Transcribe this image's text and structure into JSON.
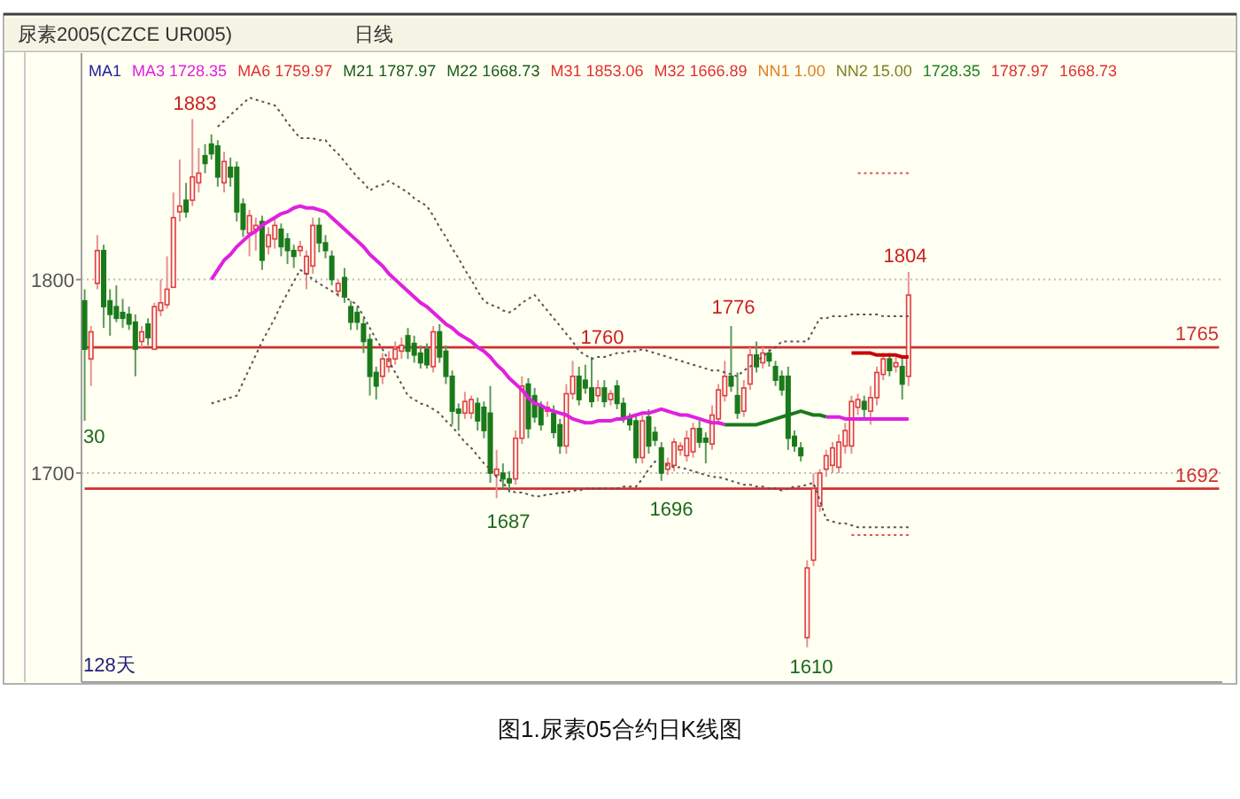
{
  "chart_data": {
    "type": "candlestick",
    "title": "图1.尿素05合约日K线图",
    "subtitle": "尿素2005(CZCE UR005)",
    "categories": [
      null,
      null,
      null,
      null,
      null,
      null,
      null,
      null,
      null,
      null,
      null,
      null,
      null,
      null,
      null,
      null,
      null,
      null,
      null,
      null,
      null,
      null,
      null,
      null,
      null,
      null,
      null,
      null,
      null,
      null,
      null,
      null,
      null,
      null,
      null,
      null,
      null,
      null,
      null,
      null,
      null,
      null,
      null,
      null,
      null,
      null,
      null,
      null,
      null,
      null,
      null,
      null,
      null,
      null,
      null,
      null,
      null,
      null,
      null,
      null,
      null,
      null,
      null,
      null,
      null,
      null,
      null,
      null,
      null,
      null,
      null,
      null,
      null,
      null,
      null,
      null,
      null,
      null,
      null,
      null,
      null,
      null,
      null,
      null,
      null,
      null,
      null,
      null,
      null,
      null,
      null,
      null,
      null,
      null,
      null,
      null,
      null,
      null,
      null,
      null,
      null,
      null,
      null,
      null,
      null,
      null,
      null,
      null,
      null,
      null,
      null,
      null,
      null,
      null,
      null,
      null,
      null,
      null,
      null,
      null,
      null,
      null,
      null,
      null,
      null,
      null,
      null,
      null,
      null,
      null,
      null,
      null,
      null,
      null,
      null,
      null,
      null,
      null,
      null,
      null,
      null,
      null,
      null,
      null,
      null,
      null,
      null,
      null,
      null,
      null,
      null,
      null,
      null,
      null,
      null,
      null,
      null,
      null,
      null,
      null,
      null,
      null,
      null,
      null,
      null,
      null,
      null,
      null,
      null,
      null,
      null,
      null,
      null,
      null,
      null,
      null,
      null,
      null,
      null,
      null
    ],
    "ohlc": [
      [
        1789,
        1795,
        1727,
        1764
      ],
      [
        1759,
        1776,
        1745,
        1773
      ],
      [
        1798,
        1823,
        1795,
        1815
      ],
      [
        1815,
        1818,
        1775,
        1786
      ],
      [
        1789,
        1795,
        1771,
        1782
      ],
      [
        1786,
        1797,
        1778,
        1780
      ],
      [
        1783,
        1790,
        1775,
        1780
      ],
      [
        1782,
        1786,
        1774,
        1777
      ],
      [
        1778,
        1782,
        1750,
        1764
      ],
      [
        1768,
        1776,
        1765,
        1773
      ],
      [
        1777,
        1780,
        1766,
        1770
      ],
      [
        1764,
        1788,
        1764,
        1786
      ],
      [
        1784,
        1800,
        1781,
        1788
      ],
      [
        1787,
        1812,
        1785,
        1795
      ],
      [
        1796,
        1845,
        1796,
        1832
      ],
      [
        1835,
        1862,
        1830,
        1838
      ],
      [
        1841,
        1850,
        1832,
        1835
      ],
      [
        1841,
        1883,
        1838,
        1853
      ],
      [
        1850,
        1868,
        1845,
        1855
      ],
      [
        1864,
        1870,
        1855,
        1860
      ],
      [
        1870,
        1875,
        1862,
        1865
      ],
      [
        1869,
        1872,
        1848,
        1853
      ],
      [
        1850,
        1866,
        1845,
        1861
      ],
      [
        1858,
        1863,
        1848,
        1853
      ],
      [
        1858,
        1861,
        1830,
        1835
      ],
      [
        1839,
        1842,
        1822,
        1826
      ],
      [
        1824,
        1836,
        1812,
        1833
      ],
      [
        1826,
        1832,
        1815,
        1828
      ],
      [
        1830,
        1833,
        1805,
        1810
      ],
      [
        1817,
        1827,
        1813,
        1823
      ],
      [
        1821,
        1832,
        1816,
        1828
      ],
      [
        1826,
        1829,
        1812,
        1817
      ],
      [
        1821,
        1824,
        1808,
        1815
      ],
      [
        1815,
        1818,
        1806,
        1812
      ],
      [
        1815,
        1820,
        1812,
        1817
      ],
      [
        1803,
        1815,
        1795,
        1812
      ],
      [
        1807,
        1832,
        1803,
        1828
      ],
      [
        1828,
        1832,
        1814,
        1819
      ],
      [
        1819,
        1823,
        1811,
        1815
      ],
      [
        1812,
        1815,
        1797,
        1800
      ],
      [
        1794,
        1800,
        1791,
        1798
      ],
      [
        1801,
        1806,
        1788,
        1791
      ],
      [
        1786,
        1789,
        1774,
        1778
      ],
      [
        1783,
        1786,
        1774,
        1778
      ],
      [
        1777,
        1780,
        1762,
        1768
      ],
      [
        1769,
        1772,
        1740,
        1750
      ],
      [
        1752,
        1755,
        1738,
        1745
      ],
      [
        1750,
        1762,
        1746,
        1759
      ],
      [
        1755,
        1763,
        1752,
        1759
      ],
      [
        1759,
        1768,
        1756,
        1764
      ],
      [
        1763,
        1770,
        1759,
        1766
      ],
      [
        1771,
        1775,
        1759,
        1763
      ],
      [
        1767,
        1771,
        1757,
        1761
      ],
      [
        1762,
        1766,
        1754,
        1757
      ],
      [
        1764,
        1767,
        1754,
        1756
      ],
      [
        1755,
        1776,
        1752,
        1773
      ],
      [
        1773,
        1777,
        1757,
        1760
      ],
      [
        1763,
        1766,
        1746,
        1750
      ],
      [
        1750,
        1753,
        1725,
        1732
      ],
      [
        1733,
        1736,
        1722,
        1731
      ],
      [
        1731,
        1742,
        1728,
        1737
      ],
      [
        1731,
        1740,
        1728,
        1738
      ],
      [
        1736,
        1739,
        1722,
        1727
      ],
      [
        1734,
        1737,
        1718,
        1722
      ],
      [
        1731,
        1745,
        1695,
        1700
      ],
      [
        1699,
        1712,
        1687,
        1702
      ],
      [
        1700,
        1705,
        1692,
        1697
      ],
      [
        1697,
        1701,
        1690,
        1695
      ],
      [
        1697,
        1722,
        1694,
        1718
      ],
      [
        1718,
        1750,
        1715,
        1745
      ],
      [
        1746,
        1749,
        1718,
        1723
      ],
      [
        1740,
        1744,
        1726,
        1729
      ],
      [
        1734,
        1737,
        1722,
        1725
      ],
      [
        1732,
        1737,
        1729,
        1734
      ],
      [
        1731,
        1735,
        1718,
        1721
      ],
      [
        1725,
        1728,
        1710,
        1714
      ],
      [
        1714,
        1746,
        1710,
        1741
      ],
      [
        1741,
        1758,
        1738,
        1750
      ],
      [
        1750,
        1755,
        1735,
        1738
      ],
      [
        1748,
        1756,
        1741,
        1744
      ],
      [
        1744,
        1760,
        1734,
        1737
      ],
      [
        1740,
        1748,
        1737,
        1744
      ],
      [
        1744,
        1748,
        1734,
        1737
      ],
      [
        1738,
        1743,
        1735,
        1741
      ],
      [
        1745,
        1748,
        1733,
        1736
      ],
      [
        1736,
        1739,
        1726,
        1729
      ],
      [
        1728,
        1731,
        1722,
        1725
      ],
      [
        1727,
        1730,
        1705,
        1708
      ],
      [
        1708,
        1730,
        1705,
        1727
      ],
      [
        1729,
        1733,
        1710,
        1714
      ],
      [
        1721,
        1724,
        1714,
        1717
      ],
      [
        1713,
        1716,
        1696,
        1700
      ],
      [
        1702,
        1708,
        1699,
        1705
      ],
      [
        1704,
        1718,
        1701,
        1716
      ],
      [
        1712,
        1716,
        1709,
        1714
      ],
      [
        1709,
        1722,
        1706,
        1718
      ],
      [
        1711,
        1726,
        1708,
        1723
      ],
      [
        1723,
        1727,
        1713,
        1716
      ],
      [
        1718,
        1721,
        1705,
        1716
      ],
      [
        1715,
        1735,
        1712,
        1730
      ],
      [
        1728,
        1746,
        1725,
        1743
      ],
      [
        1740,
        1758,
        1737,
        1750
      ],
      [
        1750,
        1776,
        1742,
        1745
      ],
      [
        1740,
        1752,
        1728,
        1731
      ],
      [
        1732,
        1748,
        1729,
        1744
      ],
      [
        1746,
        1765,
        1743,
        1761
      ],
      [
        1761,
        1768,
        1752,
        1755
      ],
      [
        1757,
        1765,
        1754,
        1762
      ],
      [
        1762,
        1764,
        1755,
        1758
      ],
      [
        1755,
        1758,
        1745,
        1748
      ],
      [
        1750,
        1753,
        1740,
        1743
      ],
      [
        1750,
        1755,
        1712,
        1718
      ],
      [
        1719,
        1722,
        1711,
        1714
      ],
      [
        1713,
        1716,
        1706,
        1709
      ],
      [
        1615,
        1655,
        1610,
        1651
      ],
      [
        1655,
        1700,
        1652,
        1692
      ],
      [
        1683,
        1702,
        1680,
        1700
      ],
      [
        1702,
        1712,
        1698,
        1709
      ],
      [
        1704,
        1716,
        1700,
        1713
      ],
      [
        1703,
        1720,
        1700,
        1716
      ],
      [
        1714,
        1726,
        1710,
        1722
      ],
      [
        1714,
        1740,
        1710,
        1737
      ],
      [
        1734,
        1741,
        1730,
        1738
      ],
      [
        1737,
        1740,
        1728,
        1733
      ],
      [
        1732,
        1745,
        1725,
        1739
      ],
      [
        1739,
        1755,
        1735,
        1752
      ],
      [
        1751,
        1762,
        1748,
        1759
      ],
      [
        1759,
        1762,
        1750,
        1753
      ],
      [
        1755,
        1760,
        1752,
        1757
      ],
      [
        1755,
        1760,
        1738,
        1746
      ],
      [
        1750,
        1804,
        1745,
        1792
      ],
      null,
      null,
      null,
      null,
      null,
      null,
      null,
      null,
      null,
      null,
      null,
      null,
      null,
      null,
      null,
      null,
      null,
      null,
      null,
      null,
      null,
      null,
      null,
      null,
      null,
      null,
      null,
      null,
      null,
      null,
      null,
      null,
      null,
      null,
      null,
      null,
      null,
      null,
      null,
      null,
      null,
      null,
      null,
      null,
      null,
      null,
      null,
      null,
      null
    ],
    "series": [
      {
        "type": "line",
        "name": "1765",
        "color": "#d03030",
        "values": [
          1765,
          1765,
          1765,
          1765,
          1765,
          1765,
          1765,
          1765,
          1765,
          1765,
          1765,
          1765,
          1765,
          1765,
          1765,
          1765,
          1765,
          1765,
          1765,
          1765,
          1765,
          1765,
          1765,
          1765,
          1765,
          1765,
          1765,
          1765,
          1765,
          1765,
          1765,
          1765,
          1765,
          1765,
          1765,
          1765,
          1765,
          1765,
          1765,
          1765,
          1765,
          1765,
          1765,
          1765,
          1765,
          1765,
          1765,
          1765,
          1765,
          1765,
          1765,
          1765,
          1765,
          1765,
          1765,
          1765,
          1765,
          1765,
          1765,
          1765,
          1765,
          1765,
          1765,
          1765,
          1765,
          1765,
          1765,
          1765,
          1765,
          1765,
          1765,
          1765,
          1765,
          1765,
          1765,
          1765,
          1765,
          1765,
          1765,
          1765,
          1765,
          1765,
          1765,
          1765,
          1765,
          1765,
          1765,
          1765,
          1765,
          1765,
          1765,
          1765,
          1765,
          1765,
          1765,
          1765,
          1765,
          1765,
          1765,
          1765,
          1765,
          1765,
          1765,
          1765,
          1765,
          1765,
          1765,
          1765,
          1765,
          1765,
          1765,
          1765,
          1765,
          1765,
          1765,
          1765,
          1765,
          1765,
          1765,
          1765,
          1765,
          1765,
          1765,
          1765,
          1765,
          1765,
          1765,
          1765,
          1765,
          1765,
          1765,
          1765,
          1765,
          1765,
          1765,
          1765,
          1765,
          1765,
          1765,
          1765,
          1765,
          1765,
          1765,
          1765,
          1765,
          1765,
          1765,
          1765,
          1765,
          1765,
          1765,
          1765,
          1765,
          1765,
          1765,
          1765,
          1765,
          1765,
          1765,
          1765,
          1765,
          1765,
          1765,
          1765,
          1765,
          1765,
          1765,
          1765,
          1765,
          1765,
          1765,
          1765,
          1765,
          1765,
          1765,
          1765,
          1765,
          1765,
          1765,
          1765
        ]
      },
      {
        "type": "line",
        "name": "1692",
        "color": "#d03030",
        "values": [
          1692,
          1692,
          1692,
          1692,
          1692,
          1692,
          1692,
          1692,
          1692,
          1692,
          1692,
          1692,
          1692,
          1692,
          1692,
          1692,
          1692,
          1692,
          1692,
          1692,
          1692,
          1692,
          1692,
          1692,
          1692,
          1692,
          1692,
          1692,
          1692,
          1692,
          1692,
          1692,
          1692,
          1692,
          1692,
          1692,
          1692,
          1692,
          1692,
          1692,
          1692,
          1692,
          1692,
          1692,
          1692,
          1692,
          1692,
          1692,
          1692,
          1692,
          1692,
          1692,
          1692,
          1692,
          1692,
          1692,
          1692,
          1692,
          1692,
          1692,
          1692,
          1692,
          1692,
          1692,
          1692,
          1692,
          1692,
          1692,
          1692,
          1692,
          1692,
          1692,
          1692,
          1692,
          1692,
          1692,
          1692,
          1692,
          1692,
          1692,
          1692,
          1692,
          1692,
          1692,
          1692,
          1692,
          1692,
          1692,
          1692,
          1692,
          1692,
          1692,
          1692,
          1692,
          1692,
          1692,
          1692,
          1692,
          1692,
          1692,
          1692,
          1692,
          1692,
          1692,
          1692,
          1692,
          1692,
          1692,
          1692,
          1692,
          1692,
          1692,
          1692,
          1692,
          1692,
          1692,
          1692,
          1692,
          1692,
          1692,
          1692,
          1692,
          1692,
          1692,
          1692,
          1692,
          1692,
          1692,
          1692,
          1692,
          1692,
          1692,
          1692,
          1692,
          1692,
          1692,
          1692,
          1692,
          1692,
          1692,
          1692,
          1692,
          1692,
          1692,
          1692,
          1692,
          1692,
          1692,
          1692,
          1692,
          1692,
          1692,
          1692,
          1692,
          1692,
          1692,
          1692,
          1692,
          1692,
          1692,
          1692,
          1692,
          1692,
          1692,
          1692,
          1692,
          1692,
          1692,
          1692,
          1692,
          1692,
          1692,
          1692,
          1692,
          1692,
          1692,
          1692,
          1692,
          1692,
          1692
        ]
      },
      {
        "type": "line",
        "color": "#e020e0",
        "values": [
          null,
          null,
          null,
          null,
          null,
          null,
          null,
          null,
          null,
          null,
          null,
          null,
          null,
          null,
          null,
          null,
          null,
          null,
          null,
          null,
          1800,
          1805,
          1810,
          1813,
          1817,
          1820,
          1823,
          1825,
          1828,
          1830,
          1832,
          1834,
          1835,
          1837,
          1838,
          1837,
          1837,
          1836,
          1835,
          1832,
          1829,
          1826,
          1823,
          1820,
          1817,
          1813,
          1810,
          1807,
          1803,
          1800,
          1797,
          1794,
          1791,
          1788,
          1786,
          1783,
          1780,
          1777,
          1775,
          1772,
          1770,
          1768,
          1765,
          1763,
          1760,
          1756,
          1753,
          1749,
          1746,
          1743,
          1739,
          1736,
          1735,
          1733,
          1732,
          1731,
          1730,
          1728,
          1727,
          1726,
          1726,
          1727,
          1727,
          1727,
          1728,
          1728,
          1729,
          1730,
          1731,
          1731,
          1732,
          1733,
          1732,
          1731,
          1730,
          1730,
          1729,
          1728,
          1727,
          1726,
          1726,
          1725,
          null,
          null,
          null,
          null,
          null,
          null,
          null,
          null,
          null,
          null,
          null,
          null,
          null,
          null,
          null,
          1729,
          1729,
          1729,
          1728,
          1728,
          1728,
          1728,
          1728,
          1728,
          1728,
          1728,
          1728,
          1728,
          1728,
          null,
          null,
          null,
          null,
          null,
          null,
          null,
          null,
          null,
          null,
          null,
          null,
          null,
          null,
          null,
          null,
          null,
          null,
          null,
          null,
          null,
          null,
          null,
          null,
          null,
          null,
          null,
          null,
          null,
          null,
          null,
          null,
          null,
          null,
          null,
          null,
          null,
          null,
          null,
          null,
          null,
          null,
          null,
          null,
          null,
          null,
          null,
          null,
          null
        ]
      },
      {
        "type": "line",
        "color": "#1a7a1a",
        "values": [
          null,
          null,
          null,
          null,
          null,
          null,
          null,
          null,
          null,
          null,
          null,
          null,
          null,
          null,
          null,
          null,
          null,
          null,
          null,
          null,
          null,
          null,
          null,
          null,
          null,
          null,
          null,
          null,
          null,
          null,
          null,
          null,
          null,
          null,
          null,
          null,
          null,
          null,
          null,
          null,
          null,
          null,
          null,
          null,
          null,
          null,
          null,
          null,
          null,
          null,
          null,
          null,
          null,
          null,
          null,
          null,
          null,
          null,
          null,
          null,
          null,
          null,
          null,
          null,
          null,
          null,
          null,
          null,
          null,
          null,
          null,
          null,
          null,
          null,
          null,
          null,
          null,
          null,
          null,
          null,
          null,
          null,
          null,
          null,
          null,
          null,
          null,
          null,
          null,
          null,
          null,
          null,
          null,
          null,
          null,
          null,
          null,
          null,
          null,
          null,
          null,
          1725,
          1725,
          1725,
          1725,
          1725,
          1725,
          1726,
          1727,
          1728,
          1729,
          1730,
          1731,
          1732,
          1731,
          1730,
          1730,
          1729,
          null,
          null,
          null,
          null,
          null,
          null,
          null,
          null,
          null,
          null,
          null,
          null,
          null,
          null,
          null,
          null,
          null,
          null,
          null,
          null,
          null,
          null,
          null,
          null,
          null,
          null,
          null,
          null,
          null,
          null,
          null,
          null,
          null,
          null,
          null,
          null,
          null,
          null,
          null,
          null,
          null,
          null,
          null,
          null,
          null,
          null,
          null,
          null,
          null,
          null,
          null,
          null,
          null,
          null,
          null,
          null,
          null,
          null,
          null,
          null,
          null,
          null
        ]
      },
      {
        "type": "line",
        "color": "#555555",
        "line_style": "dotted",
        "values": [
          null,
          null,
          null,
          null,
          null,
          null,
          null,
          null,
          null,
          null,
          null,
          null,
          null,
          null,
          null,
          null,
          null,
          null,
          null,
          null,
          null,
          1879,
          1882,
          1885,
          1888,
          1891,
          1894,
          1893,
          1892,
          1891,
          1890,
          1886,
          1881,
          1877,
          1873,
          1873,
          1873,
          1872,
          1872,
          1868,
          1865,
          1861,
          1857,
          1853,
          1850,
          1846,
          1848,
          1849,
          1851,
          1849,
          1847,
          1845,
          1842,
          1840,
          1838,
          1833,
          1827,
          1822,
          1816,
          1811,
          1805,
          1800,
          1794,
          1789,
          1787,
          1786,
          1784,
          1783,
          1785,
          1788,
          1790,
          1792,
          1788,
          1784,
          1780,
          1776,
          1772,
          1768,
          1763,
          1761,
          1759,
          1760,
          1760,
          1761,
          1762,
          1762,
          1763,
          1763,
          1764,
          1763,
          1762,
          1761,
          1760,
          1759,
          1758,
          1757,
          1756,
          1755,
          1754,
          1753,
          1753,
          1752,
          1751,
          1750,
          1753,
          1755,
          1758,
          1760,
          1763,
          1765,
          1768,
          1768,
          1768,
          1768,
          1768,
          1774,
          1780,
          1780,
          1781,
          1781,
          1781,
          1782,
          1782,
          1782,
          1782,
          1782,
          1781,
          1781,
          1781,
          1781,
          1781,
          null,
          null,
          null,
          null,
          null,
          null,
          null,
          null,
          null,
          null,
          null,
          null,
          null,
          null,
          null,
          null,
          null,
          null,
          null,
          null,
          null,
          null,
          null,
          null,
          null,
          null,
          null,
          null,
          null,
          null,
          null,
          null,
          null,
          null,
          null,
          null,
          null,
          null,
          null,
          null,
          null,
          null,
          null,
          null,
          null,
          null,
          null,
          null,
          null
        ]
      },
      {
        "type": "line",
        "color": "#555555",
        "line_style": "dotted",
        "values": [
          null,
          null,
          null,
          null,
          null,
          null,
          null,
          null,
          null,
          null,
          null,
          null,
          null,
          null,
          null,
          null,
          null,
          null,
          null,
          null,
          1736,
          1737,
          1738,
          1739,
          1740,
          1747,
          1754,
          1761,
          1768,
          1774,
          1780,
          1787,
          1793,
          1799,
          1805,
          1803,
          1800,
          1798,
          1796,
          1794,
          1792,
          1791,
          1789,
          1787,
          1781,
          1775,
          1769,
          1764,
          1758,
          1752,
          1746,
          1740,
          1738,
          1736,
          1735,
          1733,
          1731,
          1727,
          1724,
          1720,
          1716,
          1713,
          1709,
          1705,
          1702,
          1698,
          1695,
          1691,
          1690,
          1690,
          1689,
          1688,
          1688,
          1689,
          1689,
          1690,
          1690,
          1691,
          1691,
          1692,
          1692,
          1692,
          1692,
          1692,
          1692,
          1693,
          1693,
          1693,
          1697,
          1702,
          1706,
          1705,
          1704,
          1703,
          1703,
          1702,
          1701,
          1700,
          1699,
          1698,
          1698,
          1697,
          1696,
          1695,
          1694,
          1694,
          1693,
          1693,
          1692,
          1692,
          1691,
          1692,
          1693,
          1693,
          1694,
          1695,
          1686,
          1676,
          1675,
          1674,
          1674,
          1673,
          1672,
          1672,
          1672,
          1672,
          1672,
          1672,
          1672,
          1672,
          1672,
          null,
          null,
          null,
          null,
          null,
          null,
          null,
          null,
          null,
          null,
          null,
          null,
          null,
          null,
          null,
          null,
          null,
          null,
          null,
          null,
          null,
          null,
          null,
          null,
          null,
          null,
          null,
          null,
          null,
          null,
          null,
          null,
          null,
          null,
          null,
          null,
          null,
          null,
          null,
          null,
          null,
          null,
          null,
          null,
          null,
          null,
          null,
          null,
          null
        ]
      },
      {
        "type": "line",
        "color": "#cc0000",
        "values": [
          null,
          null,
          null,
          null,
          null,
          null,
          null,
          null,
          null,
          null,
          null,
          null,
          null,
          null,
          null,
          null,
          null,
          null,
          null,
          null,
          null,
          null,
          null,
          null,
          null,
          null,
          null,
          null,
          null,
          null,
          null,
          null,
          null,
          null,
          null,
          null,
          null,
          null,
          null,
          null,
          null,
          null,
          null,
          null,
          null,
          null,
          null,
          null,
          null,
          null,
          null,
          null,
          null,
          null,
          null,
          null,
          null,
          null,
          null,
          null,
          null,
          null,
          null,
          null,
          null,
          null,
          null,
          null,
          null,
          null,
          null,
          null,
          null,
          null,
          null,
          null,
          null,
          null,
          null,
          null,
          null,
          null,
          null,
          null,
          null,
          null,
          null,
          null,
          null,
          null,
          null,
          null,
          null,
          null,
          null,
          null,
          null,
          null,
          null,
          null,
          null,
          null,
          null,
          null,
          null,
          null,
          null,
          null,
          null,
          null,
          null,
          null,
          null,
          null,
          null,
          null,
          null,
          null,
          null,
          null,
          null,
          1762,
          1762,
          1762,
          1762,
          1761,
          1761,
          1761,
          1761,
          1760,
          1760,
          null,
          null,
          null,
          null,
          null,
          null,
          null,
          null,
          null,
          null,
          null,
          null,
          null,
          null,
          null,
          null,
          null,
          null,
          null,
          null,
          null,
          null,
          null,
          null,
          null,
          null,
          null,
          null,
          null,
          null,
          null,
          null,
          null,
          null,
          null,
          null,
          null,
          null,
          null,
          null,
          null,
          null,
          null,
          null,
          null,
          null,
          null,
          null,
          null
        ]
      },
      {
        "type": "line",
        "color": "#e05050",
        "line_style": "dotted",
        "values": [
          null,
          null,
          null,
          null,
          null,
          null,
          null,
          null,
          null,
          null,
          null,
          null,
          null,
          null,
          null,
          null,
          null,
          null,
          null,
          null,
          null,
          null,
          null,
          null,
          null,
          null,
          null,
          null,
          null,
          null,
          null,
          null,
          null,
          null,
          null,
          null,
          null,
          null,
          null,
          null,
          null,
          null,
          null,
          null,
          null,
          null,
          null,
          null,
          null,
          null,
          null,
          null,
          null,
          null,
          null,
          null,
          null,
          null,
          null,
          null,
          null,
          null,
          null,
          null,
          null,
          null,
          null,
          null,
          null,
          null,
          null,
          null,
          null,
          null,
          null,
          null,
          null,
          null,
          null,
          null,
          null,
          null,
          null,
          null,
          null,
          null,
          null,
          null,
          null,
          null,
          null,
          null,
          null,
          null,
          null,
          null,
          null,
          null,
          null,
          null,
          null,
          null,
          null,
          null,
          null,
          null,
          null,
          null,
          null,
          null,
          null,
          null,
          null,
          null,
          null,
          null,
          null,
          null,
          null,
          null,
          null,
          null,
          1855,
          1855,
          1855,
          1855,
          1855,
          1855,
          1855,
          1855,
          1855,
          null,
          null,
          null,
          null,
          null,
          null,
          null,
          null,
          null,
          null,
          null,
          null,
          null,
          null,
          null,
          null,
          null,
          null,
          null,
          null,
          null,
          null,
          null,
          null,
          null,
          null,
          null,
          null,
          null,
          null,
          null,
          null,
          null,
          null,
          null,
          null,
          null,
          null,
          null,
          null,
          null,
          null,
          null,
          null,
          null,
          null,
          null,
          null,
          null
        ]
      },
      {
        "type": "line",
        "color": "#e05050",
        "line_style": "dotted",
        "values": [
          null,
          null,
          null,
          null,
          null,
          null,
          null,
          null,
          null,
          null,
          null,
          null,
          null,
          null,
          null,
          null,
          null,
          null,
          null,
          null,
          null,
          null,
          null,
          null,
          null,
          null,
          null,
          null,
          null,
          null,
          null,
          null,
          null,
          null,
          null,
          null,
          null,
          null,
          null,
          null,
          null,
          null,
          null,
          null,
          null,
          null,
          null,
          null,
          null,
          null,
          null,
          null,
          null,
          null,
          null,
          null,
          null,
          null,
          null,
          null,
          null,
          null,
          null,
          null,
          null,
          null,
          null,
          null,
          null,
          null,
          null,
          null,
          null,
          null,
          null,
          null,
          null,
          null,
          null,
          null,
          null,
          null,
          null,
          null,
          null,
          null,
          null,
          null,
          null,
          null,
          null,
          null,
          null,
          null,
          null,
          null,
          null,
          null,
          null,
          null,
          null,
          null,
          null,
          null,
          null,
          null,
          null,
          null,
          null,
          null,
          null,
          null,
          null,
          null,
          null,
          null,
          null,
          null,
          null,
          null,
          null,
          1668,
          1668,
          1668,
          1668,
          1668,
          1668,
          1668,
          1668,
          1668,
          1668,
          null,
          null,
          null,
          null,
          null,
          null,
          null,
          null,
          null,
          null,
          null,
          null,
          null,
          null,
          null,
          null,
          null,
          null,
          null,
          null,
          null,
          null,
          null,
          null,
          null,
          null,
          null,
          null,
          null,
          null,
          null,
          null,
          null,
          null,
          null,
          null,
          null,
          null,
          null,
          null,
          null,
          null,
          null,
          null,
          null,
          null,
          null,
          null,
          null
        ]
      }
    ],
    "ylim": [
      1592,
      1917
    ],
    "yticks": [
      1700,
      1800
    ],
    "grid": "y",
    "tick_labels": "y",
    "annotations": [
      "日线",
      "MA1",
      "MA3 1728.35",
      "MA6 1759.97",
      "M21 1787.97",
      "M22 1668.73",
      "M31 1853.06",
      "M32 1666.89",
      "NN1 1.00",
      "NN2 15.00",
      "1728.35",
      "1787.97",
      "1668.73",
      "30",
      "128天",
      "1883",
      "1760",
      "1776",
      "1804",
      "1687",
      "1696",
      "1610"
    ]
  }
}
